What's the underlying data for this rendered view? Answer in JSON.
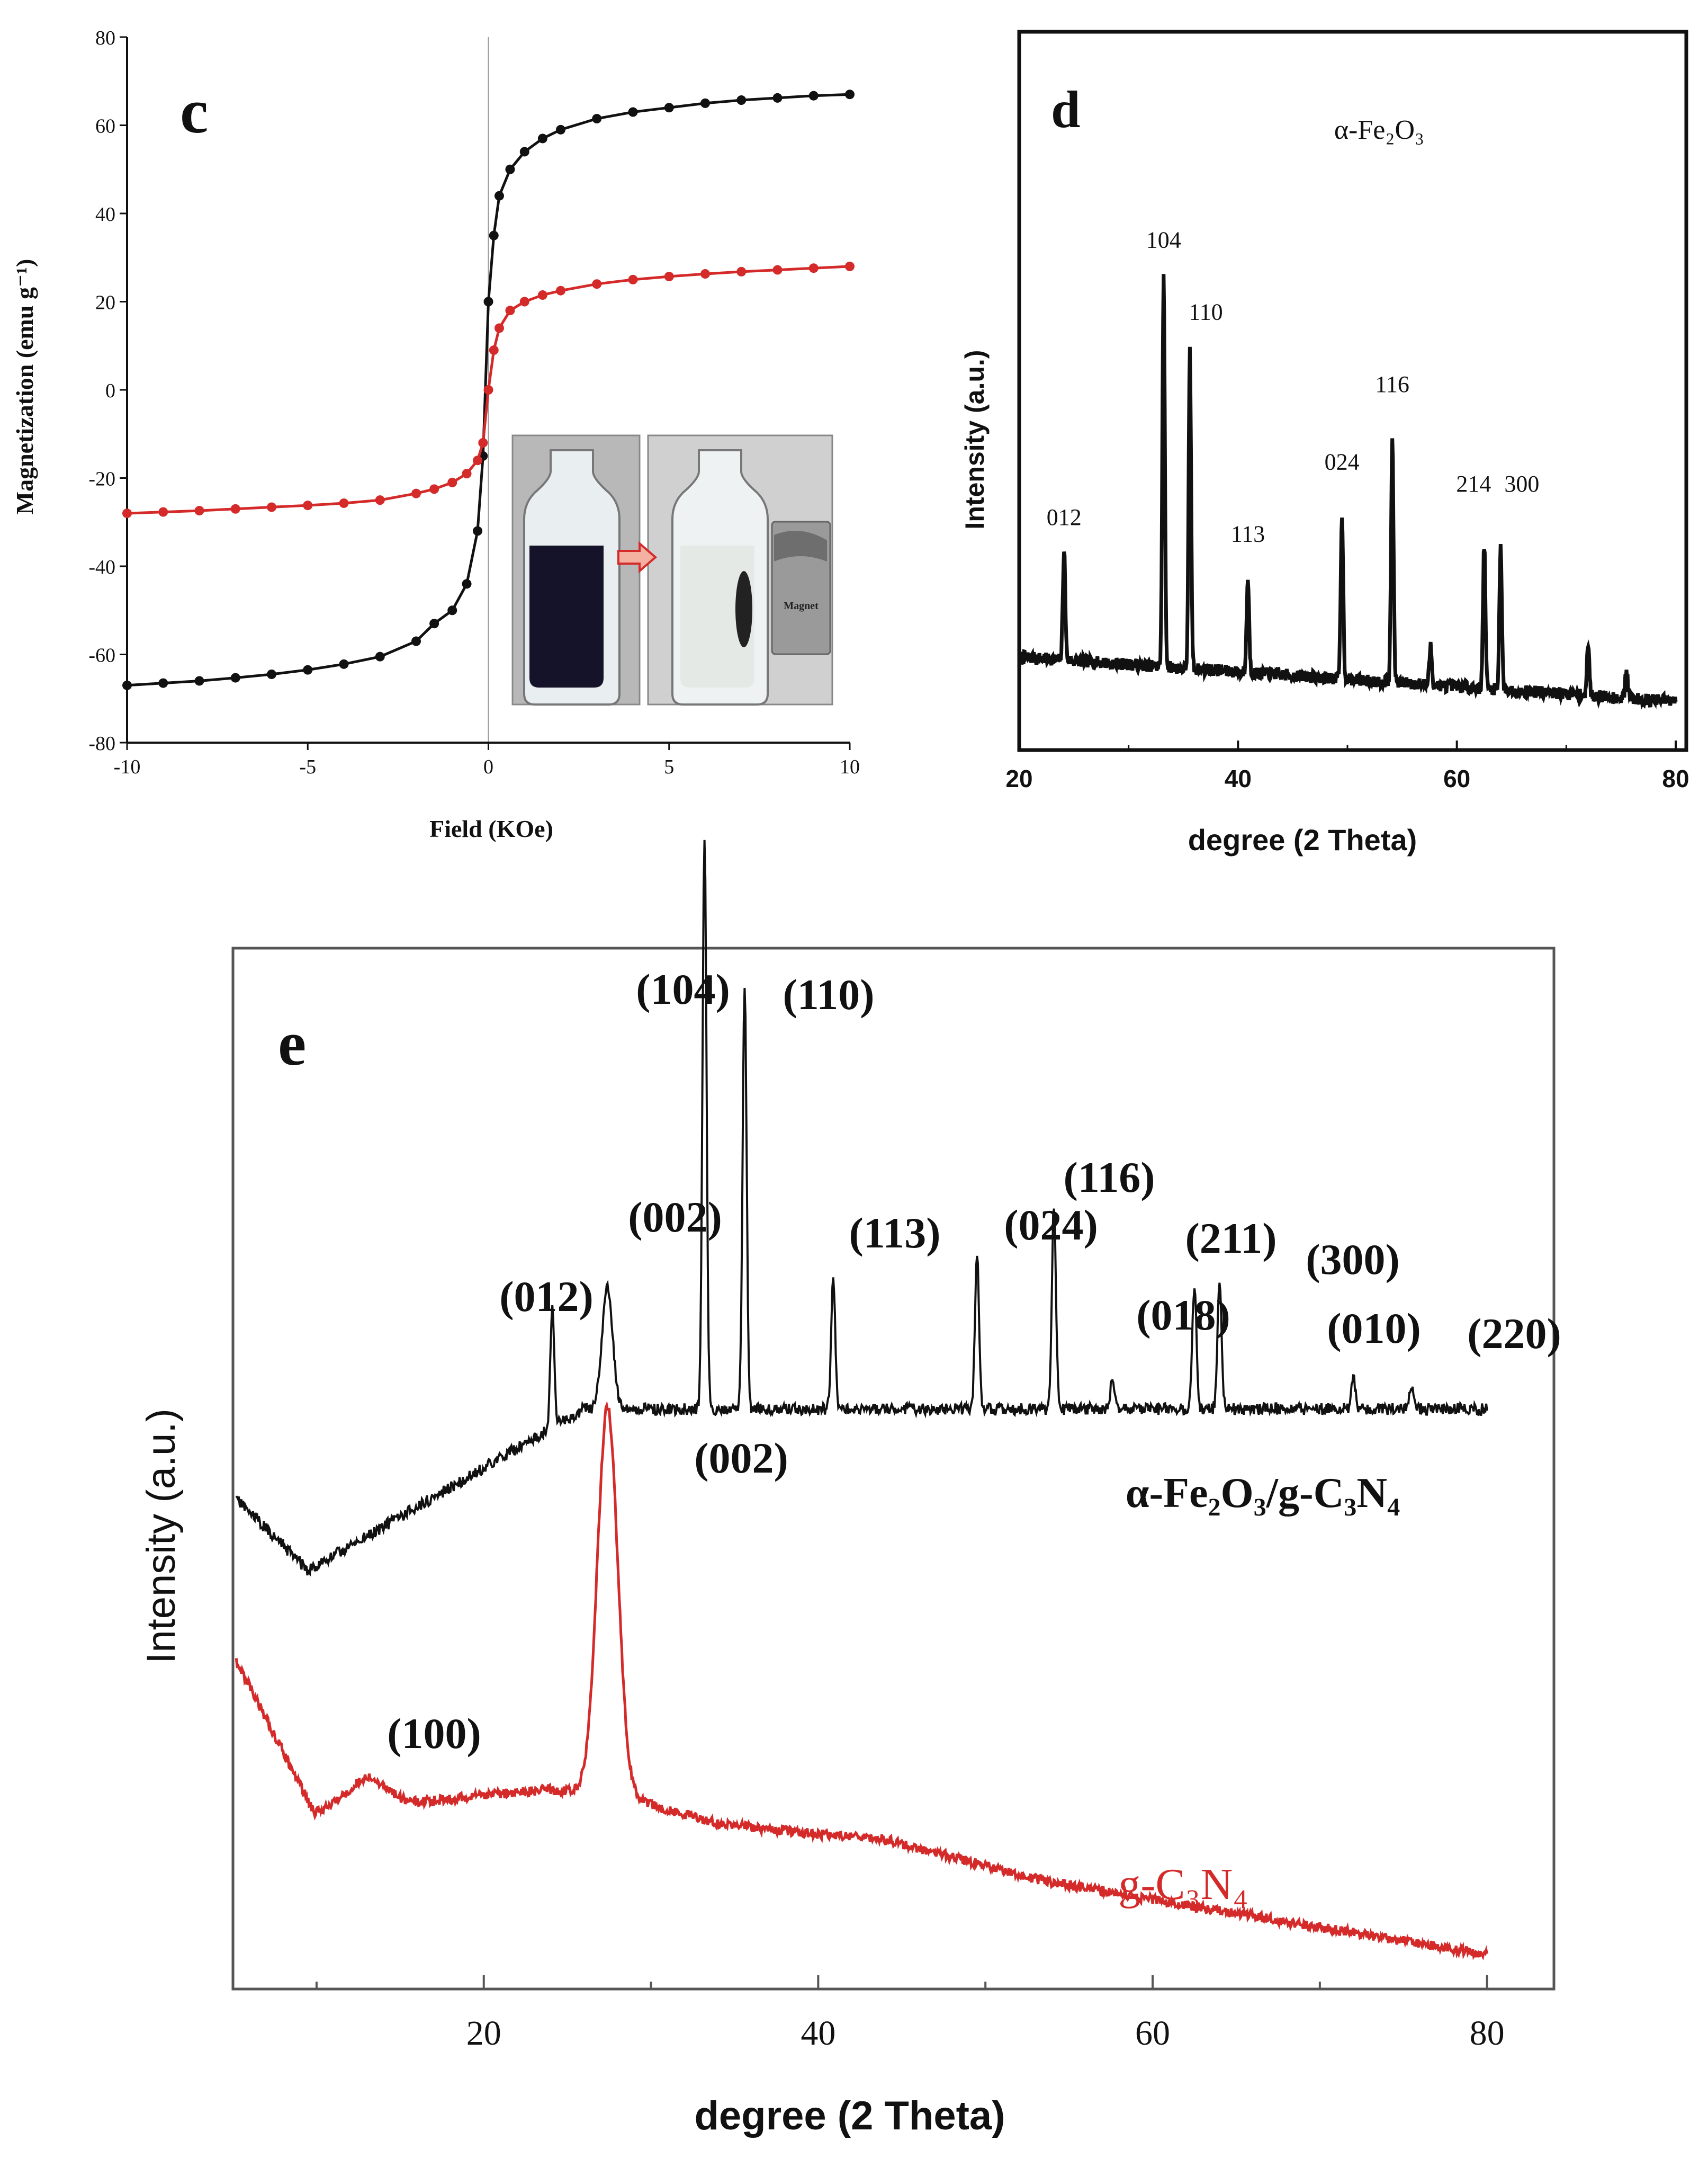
{
  "colors": {
    "black_series": "#111111",
    "red_series": "#d42a2a",
    "axis": "#111111"
  },
  "chart_data": [
    {
      "panel": "c",
      "type": "line",
      "xlabel": "Field (KOe)",
      "ylabel": "Magnetization (emu g⁻¹)",
      "xlim": [
        -10,
        10
      ],
      "ylim": [
        -80,
        80
      ],
      "xticks": [
        -10,
        -5,
        0,
        5,
        10
      ],
      "yticks": [
        80,
        60,
        40,
        20,
        0,
        -20,
        -40,
        -60,
        -80
      ],
      "series": [
        {
          "name": "black",
          "color": "#111111",
          "x": [
            -10,
            -9,
            -8,
            -7,
            -6,
            -5,
            -4,
            -3,
            -2,
            -1.5,
            -1,
            -0.6,
            -0.3,
            -0.15,
            0,
            0.15,
            0.3,
            0.6,
            1,
            1.5,
            2,
            3,
            4,
            5,
            6,
            7,
            8,
            9,
            10
          ],
          "y": [
            -67,
            -66.5,
            -66,
            -65.3,
            -64.5,
            -63.5,
            -62.2,
            -60.5,
            -57,
            -53,
            -50,
            -44,
            -32,
            -15,
            20,
            35,
            44,
            50,
            54,
            57,
            59,
            61.5,
            63,
            64,
            65,
            65.7,
            66.2,
            66.7,
            67
          ]
        },
        {
          "name": "red",
          "color": "#d42a2a",
          "x": [
            -10,
            -9,
            -8,
            -7,
            -6,
            -5,
            -4,
            -3,
            -2,
            -1.5,
            -1,
            -0.6,
            -0.3,
            -0.15,
            0,
            0.15,
            0.3,
            0.6,
            1,
            1.5,
            2,
            3,
            4,
            5,
            6,
            7,
            8,
            9,
            10
          ],
          "y": [
            -28,
            -27.7,
            -27.4,
            -27,
            -26.6,
            -26.2,
            -25.7,
            -25,
            -23.5,
            -22.5,
            -21,
            -19,
            -16,
            -12,
            0,
            9,
            14,
            18,
            20,
            21.5,
            22.5,
            24,
            25,
            25.7,
            26.3,
            26.8,
            27.2,
            27.6,
            28
          ]
        }
      ],
      "inset": {
        "label": "Magnet"
      }
    },
    {
      "panel": "d",
      "type": "line",
      "title": "α-Fe₂O₃",
      "xlabel": "degree (2 Theta)",
      "ylabel": "Intensity (a.u.)",
      "xlim": [
        20,
        80
      ],
      "xticks": [
        20,
        40,
        60,
        80
      ],
      "series": [
        {
          "name": "α-Fe₂O₃",
          "baseline_start": 10,
          "baseline_end": 2,
          "peaks": [
            {
              "x": 24.1,
              "h": 20,
              "label": "012"
            },
            {
              "x": 33.2,
              "h": 70,
              "label": "104"
            },
            {
              "x": 35.6,
              "h": 57,
              "label": "110"
            },
            {
              "x": 40.9,
              "h": 17,
              "label": "113"
            },
            {
              "x": 49.5,
              "h": 30,
              "label": "024"
            },
            {
              "x": 54.1,
              "h": 44,
              "label": "116"
            },
            {
              "x": 57.6,
              "h": 7,
              "label": ""
            },
            {
              "x": 62.5,
              "h": 26,
              "label": "214"
            },
            {
              "x": 64.0,
              "h": 26,
              "label": "300"
            },
            {
              "x": 72.0,
              "h": 9,
              "label": ""
            },
            {
              "x": 75.5,
              "h": 5,
              "label": ""
            }
          ]
        }
      ]
    },
    {
      "panel": "e",
      "type": "line",
      "xlabel": "degree (2 Theta)",
      "ylabel": "Intensity (a.u.)",
      "xlim": [
        5,
        84
      ],
      "xticks": [
        20,
        40,
        60,
        80
      ],
      "series": [
        {
          "name": "α-Fe₂O₃/g-C₃N₄",
          "color": "#111111",
          "legend": "α-Fe₂O₃/g-C₃N₄",
          "peaks": [
            {
              "x": 24.1,
              "h": 21,
              "label": "(012)"
            },
            {
              "x": 27.4,
              "h": 21,
              "label": "(002)"
            },
            {
              "x": 33.2,
              "h": 100,
              "label": "(104)"
            },
            {
              "x": 35.6,
              "h": 74,
              "label": "(110)"
            },
            {
              "x": 40.9,
              "h": 23,
              "label": "(113)"
            },
            {
              "x": 49.5,
              "h": 27,
              "label": "(024)"
            },
            {
              "x": 54.1,
              "h": 36,
              "label": "(116)"
            },
            {
              "x": 57.6,
              "h": 6,
              "label": "(018)"
            },
            {
              "x": 62.5,
              "h": 22,
              "label": "(211)"
            },
            {
              "x": 64.0,
              "h": 23,
              "label": "(300)"
            },
            {
              "x": 72.0,
              "h": 6,
              "label": "(010)"
            },
            {
              "x": 75.5,
              "h": 4,
              "label": "(220)"
            }
          ]
        },
        {
          "name": "g-C₃N₄",
          "color": "#d42a2a",
          "legend": "g-C₃N₄",
          "peaks": [
            {
              "x": 13.0,
              "h": 5,
              "label": "(100)"
            },
            {
              "x": 27.4,
              "h": 67,
              "label": "(002)"
            }
          ]
        }
      ]
    }
  ]
}
